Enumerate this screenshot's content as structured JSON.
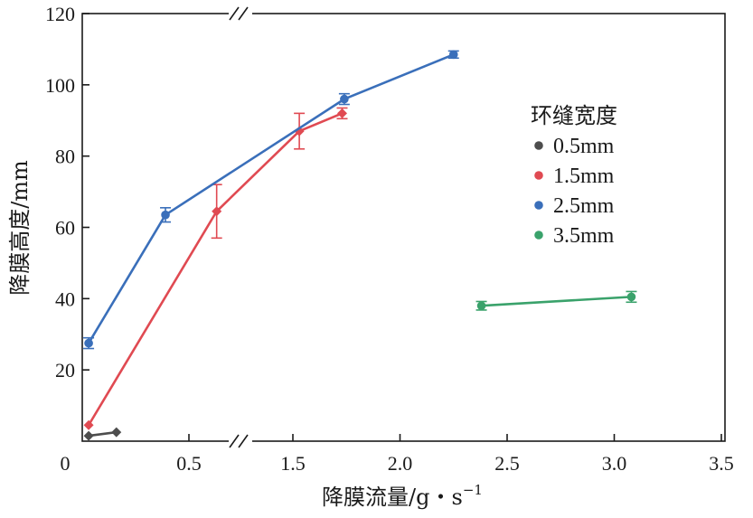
{
  "chart_data": {
    "type": "line",
    "title": "",
    "xlabel": "降膜流量/g・s",
    "xlabel_superscript": "−1",
    "ylabel": "降膜高度/mm",
    "ylim": [
      0,
      120
    ],
    "y_ticks": [
      "20",
      "40",
      "60",
      "80",
      "100",
      "120"
    ],
    "y_tick_values": [
      20,
      40,
      60,
      80,
      100,
      120
    ],
    "x_origin_label": "0",
    "x_ticks": [
      "0.5",
      "1.5",
      "2.0",
      "2.5",
      "3.0",
      "3.5"
    ],
    "x_tick_values": [
      0.5,
      1.5,
      2.0,
      2.5,
      3.0,
      3.5
    ],
    "x_axis_break": "between 0.5 and 1.5",
    "legend_title": "环缝宽度",
    "legend_position": "right",
    "series": [
      {
        "name": "0.5mm",
        "color": "#4d4d4d",
        "marker": "diamond",
        "points": [
          {
            "x": 0.03,
            "y": 1.5,
            "err": 0
          },
          {
            "x": 0.16,
            "y": 2.5,
            "err": 0
          }
        ]
      },
      {
        "name": "1.5mm",
        "color": "#e04a52",
        "marker": "diamond",
        "points": [
          {
            "x": 0.03,
            "y": 4.5,
            "err": 0
          },
          {
            "x": 0.63,
            "y": 64.5,
            "err": 7.5
          },
          {
            "x": 1.53,
            "y": 87,
            "err": 5
          },
          {
            "x": 1.73,
            "y": 92,
            "err": 1.5
          }
        ]
      },
      {
        "name": "2.5mm",
        "color": "#3a6fba",
        "marker": "circle",
        "points": [
          {
            "x": 0.03,
            "y": 27.5,
            "err": 1.5
          },
          {
            "x": 0.39,
            "y": 63.5,
            "err": 2
          },
          {
            "x": 1.74,
            "y": 96,
            "err": 1.5
          },
          {
            "x": 2.25,
            "y": 108.5,
            "err": 1
          }
        ]
      },
      {
        "name": "3.5mm",
        "color": "#3aa26b",
        "marker": "circle",
        "points": [
          {
            "x": 2.38,
            "y": 38,
            "err": 1.2
          },
          {
            "x": 3.08,
            "y": 40.5,
            "err": 1.5
          }
        ]
      }
    ]
  }
}
